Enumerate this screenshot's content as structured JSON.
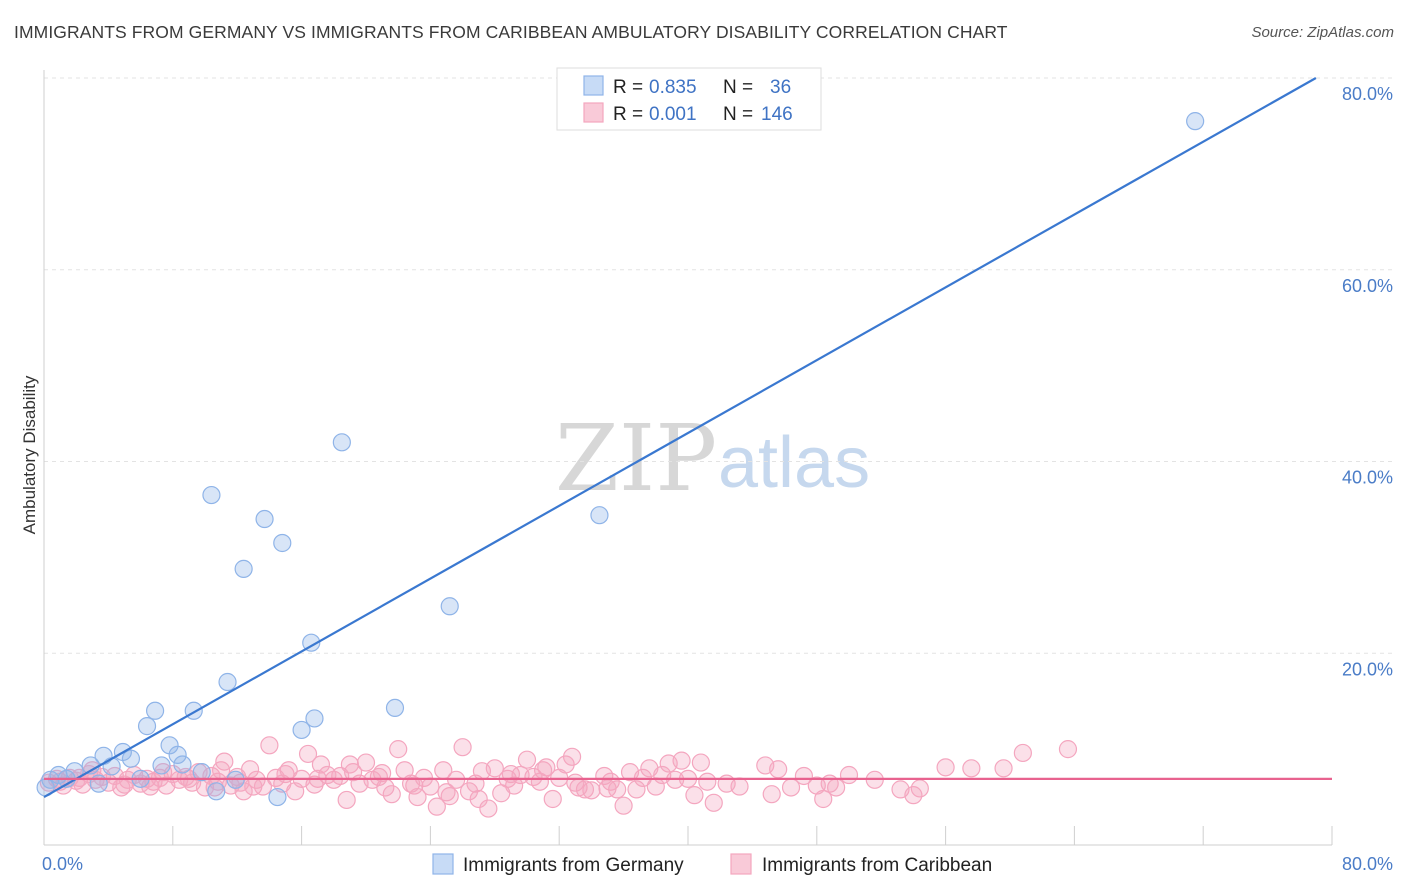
{
  "chart_data": {
    "type": "scatter",
    "title": "IMMIGRANTS FROM GERMANY VS IMMIGRANTS FROM CARIBBEAN AMBULATORY DISABILITY CORRELATION CHART",
    "source": "Source: ZipAtlas.com",
    "xlabel": "",
    "ylabel": "Ambulatory Disability",
    "xlim": [
      0,
      80
    ],
    "ylim": [
      0,
      80
    ],
    "x_tick_labels": [
      "0.0%",
      "80.0%"
    ],
    "y_ticks": [
      20,
      40,
      60,
      80
    ],
    "y_tick_labels": [
      "20.0%",
      "40.0%",
      "60.0%",
      "80.0%"
    ],
    "grid": true,
    "watermark": [
      "ZIP",
      "atlas"
    ],
    "legend_stats": [
      {
        "r_label": "R =",
        "r_value": "0.835",
        "n_label": "N =",
        "n_value": "36"
      },
      {
        "r_label": "R =",
        "r_value": "0.001",
        "n_label": "N =",
        "n_value": "146"
      }
    ],
    "series": [
      {
        "name": "Immigrants from Germany",
        "color": "#8fb4e8",
        "line_color": "#3a78d0",
        "trend": {
          "x": [
            0,
            79
          ],
          "y": [
            5.0,
            80.0
          ]
        },
        "points": [
          [
            0.1,
            6.0
          ],
          [
            0.4,
            6.8
          ],
          [
            0.9,
            7.3
          ],
          [
            1.4,
            6.9
          ],
          [
            1.9,
            7.7
          ],
          [
            2.9,
            8.3
          ],
          [
            3.4,
            6.4
          ],
          [
            3.7,
            9.3
          ],
          [
            4.2,
            8.2
          ],
          [
            4.9,
            9.7
          ],
          [
            5.4,
            9.0
          ],
          [
            6.0,
            6.9
          ],
          [
            6.4,
            12.4
          ],
          [
            6.9,
            14.0
          ],
          [
            7.3,
            8.3
          ],
          [
            7.8,
            10.4
          ],
          [
            8.3,
            9.4
          ],
          [
            8.6,
            8.4
          ],
          [
            9.3,
            14.0
          ],
          [
            9.8,
            7.6
          ],
          [
            10.4,
            36.5
          ],
          [
            10.7,
            5.6
          ],
          [
            11.4,
            17.0
          ],
          [
            11.9,
            6.8
          ],
          [
            12.4,
            28.8
          ],
          [
            13.7,
            34.0
          ],
          [
            14.5,
            5.0
          ],
          [
            14.8,
            31.5
          ],
          [
            16.6,
            21.1
          ],
          [
            16.8,
            13.2
          ],
          [
            16.0,
            12.0
          ],
          [
            18.5,
            42.0
          ],
          [
            21.8,
            14.3
          ],
          [
            25.2,
            24.9
          ],
          [
            34.5,
            34.4
          ],
          [
            71.5,
            75.5
          ]
        ]
      },
      {
        "name": "Immigrants from Caribbean",
        "color": "#f4a6bf",
        "line_color": "#e8628f",
        "trend": {
          "x": [
            0,
            80
          ],
          "y": [
            6.9,
            6.9
          ]
        },
        "points": [
          [
            0.3,
            6.5
          ],
          [
            0.8,
            6.9
          ],
          [
            1.2,
            6.2
          ],
          [
            1.6,
            7.0
          ],
          [
            2.0,
            6.7
          ],
          [
            2.4,
            6.3
          ],
          [
            2.8,
            7.4
          ],
          [
            3.2,
            6.8
          ],
          [
            3.6,
            7.1
          ],
          [
            4.0,
            6.5
          ],
          [
            4.4,
            7.2
          ],
          [
            4.8,
            6.0
          ],
          [
            5.2,
            6.8
          ],
          [
            5.6,
            7.3
          ],
          [
            6.0,
            6.4
          ],
          [
            6.4,
            6.9
          ],
          [
            6.8,
            6.6
          ],
          [
            7.2,
            7.0
          ],
          [
            7.6,
            6.2
          ],
          [
            8.0,
            7.4
          ],
          [
            8.4,
            6.8
          ],
          [
            8.8,
            7.1
          ],
          [
            9.2,
            6.5
          ],
          [
            9.6,
            7.6
          ],
          [
            10.0,
            6.0
          ],
          [
            10.4,
            7.2
          ],
          [
            10.8,
            6.6
          ],
          [
            11.2,
            8.7
          ],
          [
            11.6,
            6.2
          ],
          [
            12.0,
            7.1
          ],
          [
            12.4,
            5.6
          ],
          [
            12.8,
            7.9
          ],
          [
            13.2,
            6.8
          ],
          [
            13.6,
            6.1
          ],
          [
            14.0,
            10.4
          ],
          [
            14.4,
            7.0
          ],
          [
            14.8,
            6.4
          ],
          [
            15.2,
            7.8
          ],
          [
            15.6,
            5.6
          ],
          [
            16.0,
            6.9
          ],
          [
            16.4,
            9.5
          ],
          [
            16.8,
            6.3
          ],
          [
            17.2,
            8.4
          ],
          [
            17.6,
            7.3
          ],
          [
            18.0,
            6.8
          ],
          [
            18.4,
            7.2
          ],
          [
            18.8,
            4.7
          ],
          [
            19.2,
            7.6
          ],
          [
            19.6,
            6.4
          ],
          [
            20.0,
            8.6
          ],
          [
            20.4,
            6.8
          ],
          [
            20.8,
            7.1
          ],
          [
            21.2,
            6.0
          ],
          [
            21.6,
            5.3
          ],
          [
            22.0,
            10.0
          ],
          [
            22.4,
            7.8
          ],
          [
            22.8,
            6.4
          ],
          [
            23.2,
            5.0
          ],
          [
            23.6,
            7.0
          ],
          [
            24.0,
            6.1
          ],
          [
            24.4,
            4.0
          ],
          [
            24.8,
            7.8
          ],
          [
            25.2,
            5.1
          ],
          [
            25.6,
            6.8
          ],
          [
            26.0,
            10.2
          ],
          [
            26.4,
            5.6
          ],
          [
            26.8,
            6.4
          ],
          [
            27.2,
            7.7
          ],
          [
            27.6,
            3.8
          ],
          [
            28.0,
            8.0
          ],
          [
            28.4,
            5.4
          ],
          [
            28.8,
            6.9
          ],
          [
            29.2,
            6.2
          ],
          [
            29.6,
            7.3
          ],
          [
            30.0,
            8.9
          ],
          [
            30.4,
            7.1
          ],
          [
            30.8,
            6.6
          ],
          [
            31.2,
            8.1
          ],
          [
            31.6,
            4.8
          ],
          [
            32.0,
            7.0
          ],
          [
            32.4,
            8.4
          ],
          [
            32.8,
            9.2
          ],
          [
            33.2,
            6.0
          ],
          [
            33.6,
            5.8
          ],
          [
            34.0,
            5.7
          ],
          [
            34.8,
            7.2
          ],
          [
            35.2,
            6.6
          ],
          [
            35.6,
            5.8
          ],
          [
            36.0,
            4.1
          ],
          [
            36.4,
            7.6
          ],
          [
            36.8,
            5.8
          ],
          [
            37.2,
            7.0
          ],
          [
            37.6,
            8.0
          ],
          [
            38.0,
            6.1
          ],
          [
            38.4,
            7.3
          ],
          [
            38.8,
            8.5
          ],
          [
            39.2,
            6.8
          ],
          [
            39.6,
            8.8
          ],
          [
            40.0,
            6.9
          ],
          [
            40.4,
            5.2
          ],
          [
            40.8,
            8.6
          ],
          [
            41.2,
            6.6
          ],
          [
            41.6,
            4.4
          ],
          [
            42.4,
            6.4
          ],
          [
            43.2,
            6.1
          ],
          [
            44.8,
            8.3
          ],
          [
            45.2,
            5.3
          ],
          [
            45.6,
            7.9
          ],
          [
            46.4,
            6.0
          ],
          [
            47.2,
            7.2
          ],
          [
            48.0,
            6.2
          ],
          [
            48.4,
            4.8
          ],
          [
            48.8,
            6.4
          ],
          [
            49.2,
            6.0
          ],
          [
            50.0,
            7.3
          ],
          [
            51.6,
            6.8
          ],
          [
            53.2,
            5.8
          ],
          [
            54.4,
            5.9
          ],
          [
            56.0,
            8.1
          ],
          [
            57.6,
            8.0
          ],
          [
            54.0,
            5.2
          ],
          [
            59.6,
            8.0
          ],
          [
            60.8,
            9.6
          ],
          [
            63.6,
            10.0
          ],
          [
            1.0,
            6.6
          ],
          [
            2.2,
            7.0
          ],
          [
            3.0,
            7.8
          ],
          [
            5.0,
            6.3
          ],
          [
            6.6,
            6.1
          ],
          [
            7.4,
            7.6
          ],
          [
            9.0,
            6.9
          ],
          [
            10.6,
            6.0
          ],
          [
            11.0,
            7.8
          ],
          [
            12.2,
            6.5
          ],
          [
            13.0,
            6.1
          ],
          [
            15.0,
            7.4
          ],
          [
            17.0,
            6.9
          ],
          [
            19.0,
            8.4
          ],
          [
            21.0,
            7.5
          ],
          [
            23.0,
            6.2
          ],
          [
            25.0,
            5.5
          ],
          [
            27.0,
            4.8
          ],
          [
            29.0,
            7.4
          ],
          [
            31.0,
            7.8
          ],
          [
            33.0,
            6.5
          ],
          [
            35.0,
            5.9
          ]
        ]
      }
    ]
  }
}
